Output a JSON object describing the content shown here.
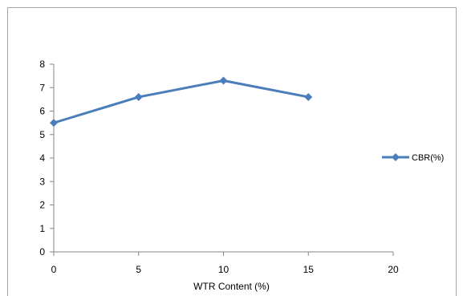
{
  "chart_data": {
    "type": "line",
    "x": [
      0,
      5,
      10,
      15
    ],
    "series": [
      {
        "name": "CBR(%)",
        "values": [
          5.5,
          6.6,
          7.3,
          6.6
        ],
        "color": "#4a7ebb",
        "marker": "diamond"
      }
    ],
    "xlim": [
      0,
      20
    ],
    "ylim": [
      0,
      8
    ],
    "xticks": [
      0,
      5,
      10,
      15,
      20
    ],
    "yticks": [
      0,
      1,
      2,
      3,
      4,
      5,
      6,
      7,
      8
    ],
    "title": "",
    "xlabel": "WTR Content (%)",
    "ylabel": "",
    "grid": false,
    "legend_position": "right",
    "axis_color": "#868686"
  }
}
